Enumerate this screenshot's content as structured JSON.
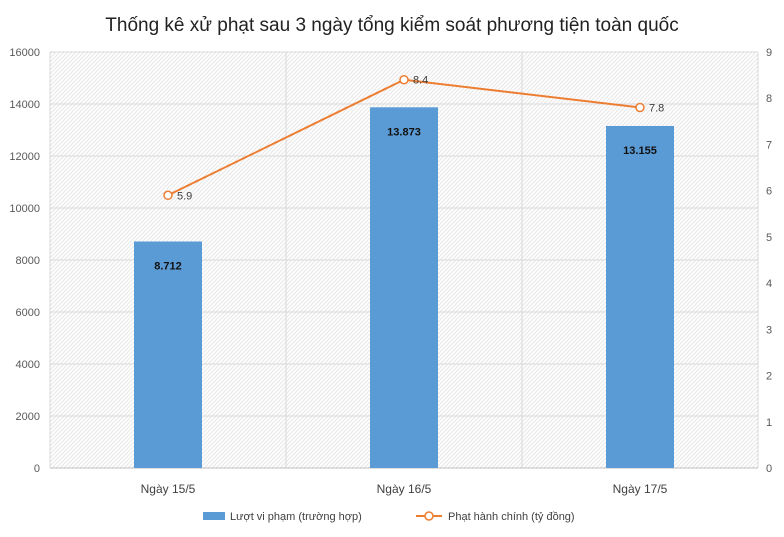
{
  "chart_data": {
    "type": "bar",
    "title": "Thống kê xử phạt sau 3 ngày tổng kiểm soát phương tiện toàn quốc",
    "categories": [
      "Ngày 15/5",
      "Ngày 16/5",
      "Ngày 17/5"
    ],
    "series": [
      {
        "name": "Lượt vi phạm (trường hợp)",
        "type": "bar",
        "axis": "left",
        "color": "#5b9bd5",
        "values": [
          8712,
          13873,
          13155
        ],
        "labels": [
          "8.712",
          "13.873",
          "13.155"
        ]
      },
      {
        "name": "Phạt hành chính (tỷ đồng)",
        "type": "line",
        "axis": "right",
        "color": "#ed7d31",
        "values": [
          5.9,
          8.4,
          7.8
        ],
        "labels": [
          "5.9",
          "8.4",
          "7.8"
        ]
      }
    ],
    "y_left": {
      "range": [
        0,
        16000
      ],
      "ticks": [
        0,
        2000,
        4000,
        6000,
        8000,
        10000,
        12000,
        14000,
        16000
      ],
      "tick_labels": [
        "0",
        "2000",
        "4000",
        "6000",
        "8000",
        "10000",
        "12000",
        "14000",
        "16000"
      ]
    },
    "y_right": {
      "range": [
        0,
        9
      ],
      "ticks": [
        0,
        1,
        2,
        3,
        4,
        5,
        6,
        7,
        8,
        9
      ],
      "tick_labels": [
        "0",
        "1",
        "2",
        "3",
        "4",
        "5",
        "6",
        "7",
        "8",
        "9"
      ]
    },
    "grid": true,
    "legend": "bottom"
  }
}
